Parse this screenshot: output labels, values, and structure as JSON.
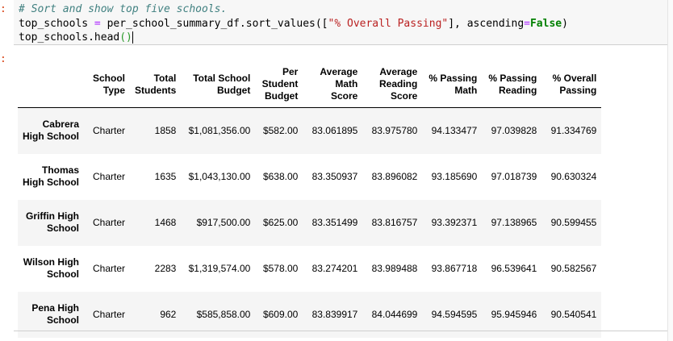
{
  "input_prompt": ":",
  "output_prompt": ":",
  "code": {
    "line1": "# Sort and show top five schools.",
    "line2": {
      "var": "top_schools ",
      "assign": "=",
      "call": " per_school_summary_df.sort_values([",
      "string": "\"% Overall Passing\"",
      "after": "], ascending",
      "eq": "=",
      "bool": "False",
      "close": ")"
    },
    "line3": {
      "call": "top_schools.head",
      "parens": "()"
    }
  },
  "table": {
    "columns": [
      "School Type",
      "Total Students",
      "Total School Budget",
      "Per Student Budget",
      "Average Math Score",
      "Average Reading Score",
      "% Passing Math",
      "% Passing Reading",
      "% Overall Passing"
    ],
    "rows": [
      {
        "school": "Cabrera High School",
        "cells": [
          "Charter",
          "1858",
          "$1,081,356.00",
          "$582.00",
          "83.061895",
          "83.975780",
          "94.133477",
          "97.039828",
          "91.334769"
        ]
      },
      {
        "school": "Thomas High School",
        "cells": [
          "Charter",
          "1635",
          "$1,043,130.00",
          "$638.00",
          "83.350937",
          "83.896082",
          "93.185690",
          "97.018739",
          "90.630324"
        ]
      },
      {
        "school": "Griffin High School",
        "cells": [
          "Charter",
          "1468",
          "$917,500.00",
          "$625.00",
          "83.351499",
          "83.816757",
          "93.392371",
          "97.138965",
          "90.599455"
        ]
      },
      {
        "school": "Wilson High School",
        "cells": [
          "Charter",
          "2283",
          "$1,319,574.00",
          "$578.00",
          "83.274201",
          "83.989488",
          "93.867718",
          "96.539641",
          "90.582567"
        ]
      },
      {
        "school": "Pena High School",
        "cells": [
          "Charter",
          "962",
          "$585,858.00",
          "$609.00",
          "83.839917",
          "84.044699",
          "94.594595",
          "95.945946",
          "90.540541"
        ]
      }
    ]
  }
}
